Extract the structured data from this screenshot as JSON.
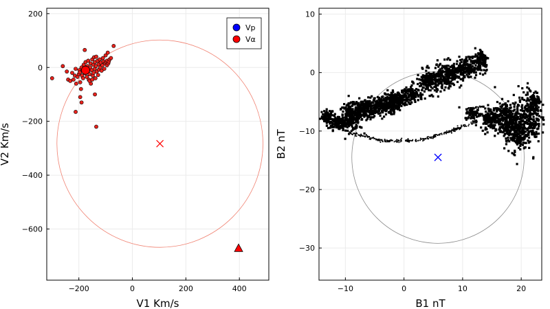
{
  "chart_data": [
    {
      "type": "scatter",
      "xlabel": "V1 Km/s",
      "ylabel": "V2 Km/s",
      "xlim": [
        -320,
        510
      ],
      "ylim": [
        -790,
        220
      ],
      "xticks": [
        -200,
        0,
        200,
        400
      ],
      "yticks": [
        200,
        0,
        -200,
        -400,
        -600
      ],
      "xtick_labels": [
        "−200",
        "0",
        "200",
        "400"
      ],
      "ytick_labels": [
        "200",
        "0",
        "−200",
        "−400",
        "−600"
      ],
      "grid": true,
      "legend": {
        "placement": "top-right",
        "entries": [
          {
            "name": "Vp",
            "color": "#0000ff"
          },
          {
            "name": "Vα",
            "color": "#ff0000"
          }
        ]
      },
      "series": [
        {
          "name": "Vα",
          "color": "#e8221c",
          "points": [
            [
              -300,
              -40
            ],
            [
              -260,
              5
            ],
            [
              -245,
              -15
            ],
            [
              -240,
              -45
            ],
            [
              -232,
              -50
            ],
            [
              -225,
              -20
            ],
            [
              -220,
              -45
            ],
            [
              -215,
              -30
            ],
            [
              -212,
              -5
            ],
            [
              -210,
              -60
            ],
            [
              -205,
              -35
            ],
            [
              -200,
              -25
            ],
            [
              -198,
              -10
            ],
            [
              -196,
              -18
            ],
            [
              -195,
              -55
            ],
            [
              -192,
              -80
            ],
            [
              -190,
              0
            ],
            [
              -188,
              -30
            ],
            [
              -186,
              -12
            ],
            [
              -184,
              -40
            ],
            [
              -182,
              10
            ],
            [
              -180,
              -5
            ],
            [
              -178,
              65
            ],
            [
              -176,
              -22
            ],
            [
              -175,
              20
            ],
            [
              -172,
              -8
            ],
            [
              -170,
              -35
            ],
            [
              -168,
              5
            ],
            [
              -166,
              -15
            ],
            [
              -165,
              25
            ],
            [
              -163,
              -45
            ],
            [
              -160,
              -25
            ],
            [
              -158,
              0
            ],
            [
              -156,
              15
            ],
            [
              -155,
              -60
            ],
            [
              -152,
              -10
            ],
            [
              -150,
              30
            ],
            [
              -148,
              -30
            ],
            [
              -146,
              10
            ],
            [
              -145,
              -20
            ],
            [
              -143,
              38
            ],
            [
              -141,
              -5
            ],
            [
              -140,
              20
            ],
            [
              -138,
              -40
            ],
            [
              -136,
              5
            ],
            [
              -135,
              40
            ],
            [
              -133,
              -15
            ],
            [
              -130,
              25
            ],
            [
              -128,
              -28
            ],
            [
              -126,
              12
            ],
            [
              -125,
              -8
            ],
            [
              -122,
              30
            ],
            [
              -120,
              0
            ],
            [
              -118,
              18
            ],
            [
              -115,
              -12
            ],
            [
              -112,
              8
            ],
            [
              -110,
              35
            ],
            [
              -108,
              22
            ],
            [
              -105,
              -5
            ],
            [
              -102,
              15
            ],
            [
              -100,
              45
            ],
            [
              -98,
              20
            ],
            [
              -95,
              8
            ],
            [
              -95,
              25
            ],
            [
              -92,
              55
            ],
            [
              -90,
              15
            ],
            [
              -88,
              22
            ],
            [
              -85,
              30
            ],
            [
              -80,
              35
            ],
            [
              -70,
              80
            ],
            [
              -140,
              -100
            ],
            [
              -195,
              -110
            ],
            [
              -190,
              -130
            ],
            [
              -212,
              -165
            ],
            [
              -135,
              -220
            ],
            [
              -160,
              -50
            ],
            [
              -150,
              -45
            ]
          ],
          "mean": [
            -175,
            -10
          ]
        },
        {
          "name": "Vp",
          "color": "#0000ff",
          "points": []
        }
      ],
      "annotations": [
        {
          "kind": "circle",
          "center": [
            103,
            -283
          ],
          "radius": 385,
          "color": "#f08070"
        },
        {
          "kind": "x-marker",
          "at": [
            103,
            -283
          ],
          "color": "#ff0000"
        },
        {
          "kind": "triangle-marker",
          "at": [
            397,
            -671
          ],
          "color": "#ff0000"
        }
      ]
    },
    {
      "type": "scatter",
      "xlabel": "B1 nT",
      "ylabel": "B2 nT",
      "xlim": [
        -14.5,
        23.5
      ],
      "ylim": [
        -35.5,
        11
      ],
      "xticks": [
        -10,
        0,
        10,
        20
      ],
      "yticks": [
        10,
        0,
        -10,
        -20,
        -30
      ],
      "xtick_labels": [
        "−10",
        "0",
        "10",
        "20"
      ],
      "ytick_labels": [
        "10",
        "0",
        "−10",
        "−20",
        "−30"
      ],
      "grid": true,
      "series": [
        {
          "name": "",
          "color": "#000000",
          "clusters": [
            {
              "x": -13,
              "y": -7.5,
              "sx": 0.5,
              "sy": 0.6,
              "n": 60
            },
            {
              "x": -11.2,
              "y": -8.6,
              "sx": 0.9,
              "sy": 0.6,
              "n": 140
            },
            {
              "x": -9,
              "y": -7.6,
              "sx": 1.0,
              "sy": 1.1,
              "n": 220
            },
            {
              "x": -6.5,
              "y": -6.2,
              "sx": 1.3,
              "sy": 0.8,
              "n": 220
            },
            {
              "x": -3.5,
              "y": -5.6,
              "sx": 1.2,
              "sy": 0.8,
              "n": 200
            },
            {
              "x": -1.2,
              "y": -4.6,
              "sx": 1.0,
              "sy": 0.7,
              "n": 180
            },
            {
              "x": 1.5,
              "y": -3.8,
              "sx": 0.8,
              "sy": 0.6,
              "n": 90
            },
            {
              "x": 4.5,
              "y": -1.6,
              "sx": 1.2,
              "sy": 1.0,
              "n": 200
            },
            {
              "x": 7.5,
              "y": -0.4,
              "sx": 1.2,
              "sy": 1.0,
              "n": 200
            },
            {
              "x": 10.5,
              "y": 0.8,
              "sx": 1.2,
              "sy": 0.9,
              "n": 170
            },
            {
              "x": 13.3,
              "y": 2.2,
              "sx": 0.6,
              "sy": 1.0,
              "n": 90
            },
            {
              "x": 11.8,
              "y": -7.0,
              "sx": 0.7,
              "sy": 0.5,
              "n": 70
            },
            {
              "x": 14.8,
              "y": -7.8,
              "sx": 0.9,
              "sy": 0.9,
              "n": 150
            },
            {
              "x": 17.3,
              "y": -8.2,
              "sx": 0.9,
              "sy": 1.6,
              "n": 220
            },
            {
              "x": 19.2,
              "y": -9.5,
              "sx": 0.9,
              "sy": 2.0,
              "n": 240
            },
            {
              "x": 21.5,
              "y": -7.5,
              "sx": 0.9,
              "sy": 2.3,
              "n": 240
            },
            {
              "x": 22.4,
              "y": -5.2,
              "sx": 0.4,
              "sy": 0.9,
              "n": 60
            }
          ],
          "trails": [
            {
              "from": [
                -9.5,
                -10.2
              ],
              "to": [
                -3.5,
                -11.7
              ],
              "n": 70
            },
            {
              "from": [
                -3.5,
                -11.7
              ],
              "to": [
                2.5,
                -11.6
              ],
              "n": 70
            },
            {
              "from": [
                2.5,
                -11.6
              ],
              "to": [
                8.0,
                -10.0
              ],
              "n": 70
            },
            {
              "from": [
                8.0,
                -10.0
              ],
              "to": [
                12.5,
                -8.3
              ],
              "n": 70
            },
            {
              "from": [
                10.5,
                -6.2
              ],
              "to": [
                13.5,
                -5.8
              ],
              "n": 30
            },
            {
              "from": [
                8.5,
                0.2
              ],
              "to": [
                11.5,
                1.2
              ],
              "n": 30
            }
          ]
        }
      ],
      "annotations": [
        {
          "kind": "circle",
          "center": [
            5.8,
            -14.5
          ],
          "radius": 14.7,
          "color": "#888888"
        },
        {
          "kind": "x-marker",
          "at": [
            5.8,
            -14.5
          ],
          "color": "#0000ff"
        }
      ]
    }
  ]
}
